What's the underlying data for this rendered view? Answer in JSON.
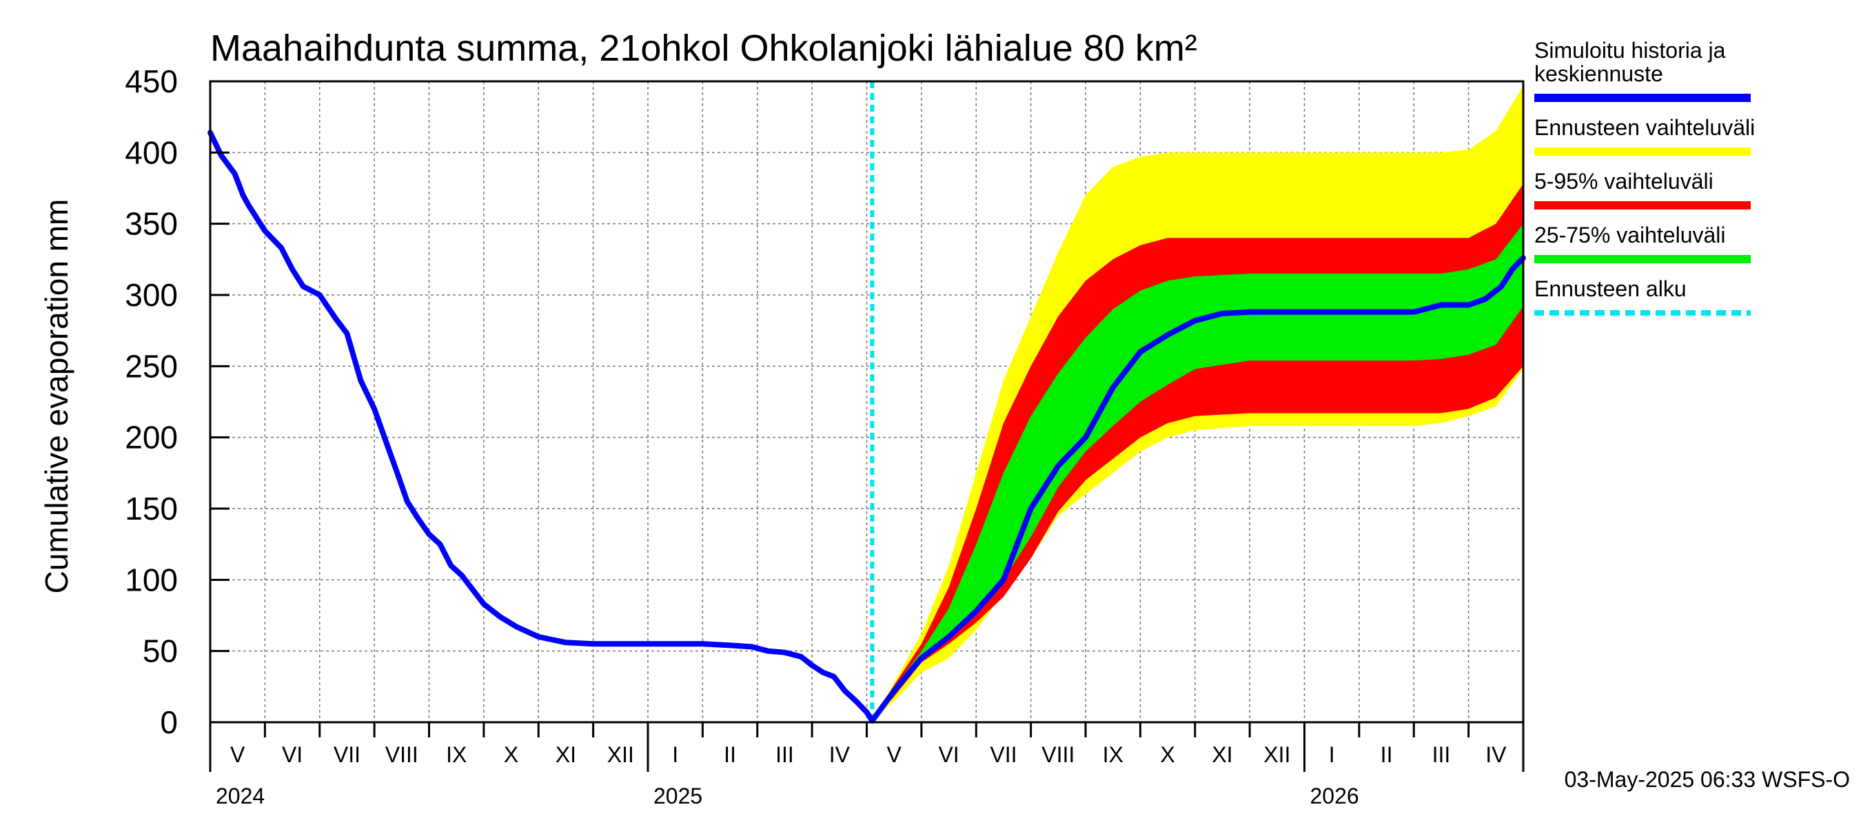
{
  "chart_data": {
    "type": "area",
    "title": "Maahaihdunta summa, 21ohkol Ohkolanjoki lähialue 80 km²",
    "ylabel": "Cumulative evaporation   mm",
    "xlabel": "",
    "ylim": [
      0,
      450
    ],
    "yticks": [
      0,
      50,
      100,
      150,
      200,
      250,
      300,
      350,
      400,
      450
    ],
    "x_unit": "months since 2024-05-01",
    "xlim": [
      0,
      24
    ],
    "grid": true,
    "month_labels": [
      "V",
      "VI",
      "VII",
      "VIII",
      "IX",
      "X",
      "XI",
      "XII",
      "I",
      "II",
      "III",
      "IV",
      "V",
      "VI",
      "VII",
      "VIII",
      "IX",
      "X",
      "XI",
      "XII",
      "I",
      "II",
      "III",
      "IV"
    ],
    "year_labels": [
      {
        "label": "2024",
        "month_index": 0
      },
      {
        "label": "2025",
        "month_index": 8
      },
      {
        "label": "2026",
        "month_index": 20
      }
    ],
    "forecast_start": 12.1,
    "history": {
      "x": [
        0,
        0.2,
        0.45,
        0.6,
        0.7,
        1.0,
        1.3,
        1.5,
        1.7,
        2.0,
        2.3,
        2.5,
        2.75,
        3.0,
        3.25,
        3.4,
        3.6,
        3.8,
        4.0,
        4.2,
        4.4,
        4.6,
        4.8,
        5.0,
        5.3,
        5.6,
        6.0,
        6.5,
        7.0,
        7.5,
        8.0,
        8.5,
        9.0,
        9.5,
        9.9,
        10.2,
        10.5,
        10.8,
        11.0,
        11.2,
        11.4,
        11.6,
        11.8,
        12.0,
        12.1
      ],
      "y": [
        414,
        398,
        385,
        370,
        363,
        345,
        333,
        318,
        306,
        300,
        283,
        273,
        240,
        220,
        193,
        177,
        155,
        143,
        132,
        125,
        110,
        103,
        93,
        83,
        74,
        67,
        60,
        56,
        55,
        55,
        55,
        55,
        55,
        54,
        53,
        50,
        49,
        46,
        40,
        35,
        32,
        22,
        15,
        7,
        1
      ]
    },
    "forecast_median": {
      "x": [
        12.1,
        12.5,
        13.0,
        13.5,
        14.0,
        14.5,
        15.0,
        15.5,
        16.0,
        16.5,
        17.0,
        17.5,
        18.0,
        18.5,
        19.0,
        19.5,
        20.0,
        21.0,
        22.0,
        22.5,
        23.0,
        23.3,
        23.6,
        23.8,
        24.0
      ],
      "y": [
        1,
        22,
        45,
        60,
        78,
        100,
        150,
        180,
        200,
        235,
        260,
        272,
        282,
        287,
        288,
        288,
        288,
        288,
        288,
        293,
        293,
        297,
        306,
        318,
        326
      ]
    },
    "bands": [
      {
        "name": "Ennusteen vaihteluväli",
        "color": "#ffff00",
        "x": [
          12.1,
          12.5,
          13.0,
          13.5,
          14.0,
          14.5,
          15.0,
          15.5,
          16.0,
          16.5,
          17.0,
          17.5,
          18.0,
          19.0,
          20.0,
          21.0,
          22.0,
          22.5,
          23.0,
          23.5,
          24.0
        ],
        "lower": [
          1,
          15,
          35,
          45,
          65,
          90,
          115,
          145,
          160,
          175,
          190,
          200,
          205,
          208,
          208,
          208,
          208,
          210,
          215,
          222,
          248
        ],
        "upper": [
          1,
          28,
          62,
          110,
          175,
          240,
          285,
          330,
          370,
          390,
          397,
          400,
          400,
          400,
          400,
          400,
          400,
          400,
          402,
          415,
          447
        ]
      },
      {
        "name": "5-95% vaihteluväli",
        "color": "#ff0000",
        "x": [
          12.1,
          12.5,
          13.0,
          13.5,
          14.0,
          14.5,
          15.0,
          15.5,
          16.0,
          16.5,
          17.0,
          17.5,
          18.0,
          19.0,
          20.0,
          21.0,
          22.0,
          22.5,
          23.0,
          23.5,
          24.0
        ],
        "lower": [
          1,
          18,
          42,
          55,
          70,
          88,
          115,
          148,
          170,
          185,
          200,
          210,
          215,
          217,
          217,
          217,
          217,
          217,
          220,
          228,
          250
        ],
        "upper": [
          1,
          26,
          55,
          95,
          150,
          210,
          250,
          285,
          310,
          325,
          335,
          340,
          340,
          340,
          340,
          340,
          340,
          340,
          340,
          350,
          378
        ]
      },
      {
        "name": "25-75% vaihteluväli",
        "color": "#00ee00",
        "x": [
          12.1,
          12.5,
          13.0,
          13.5,
          14.0,
          14.5,
          15.0,
          15.5,
          16.0,
          16.5,
          17.0,
          17.5,
          18.0,
          19.0,
          20.0,
          21.0,
          22.0,
          22.5,
          23.0,
          23.5,
          24.0
        ],
        "lower": [
          1,
          21,
          45,
          62,
          78,
          100,
          130,
          165,
          190,
          208,
          225,
          237,
          248,
          254,
          254,
          254,
          254,
          255,
          258,
          265,
          292
        ],
        "upper": [
          1,
          24,
          50,
          80,
          125,
          175,
          215,
          245,
          270,
          290,
          303,
          310,
          313,
          315,
          315,
          315,
          315,
          315,
          318,
          325,
          350
        ]
      }
    ],
    "legend": [
      {
        "label": "Simuloitu historia ja keskiennuste",
        "color": "#0000ff",
        "style": "solid"
      },
      {
        "label": "Ennusteen vaihteluväli",
        "color": "#ffff00",
        "style": "solid"
      },
      {
        "label": "5-95% vaihteluväli",
        "color": "#ff0000",
        "style": "solid"
      },
      {
        "label": "25-75% vaihteluväli",
        "color": "#00ee00",
        "style": "solid"
      },
      {
        "label": "Ennusteen alku",
        "color": "#00e5ee",
        "style": "dashed"
      }
    ],
    "legend_position": "right",
    "timestamp": "03-May-2025 06:33 WSFS-O",
    "median_color": "#0000ff",
    "forecast_line_color": "#00e5ee"
  }
}
